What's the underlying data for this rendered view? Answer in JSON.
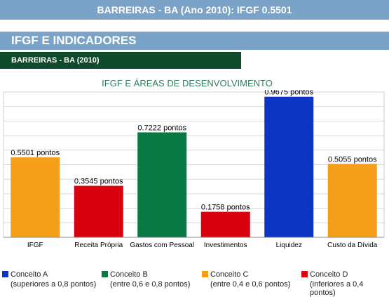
{
  "header": {
    "title": "BARREIRAS - BA (Ano 2010): IFGF 0.5501"
  },
  "section": {
    "title": "IFGF E INDICADORES",
    "subtitle": "BARREIRAS - BA (2010)"
  },
  "chart_data": {
    "type": "bar",
    "title": "IFGF E ÁREAS DE DESENVOLVIMENTO",
    "categories": [
      "IFGF",
      "Receita Própria",
      "Gastos com Pessoal",
      "Investimentos",
      "Liquidez",
      "Custo da Dívida"
    ],
    "values": [
      0.5501,
      0.3545,
      0.7222,
      0.1758,
      0.9675,
      0.5055
    ],
    "value_labels": [
      "0.5501 pontos",
      "0.3545 pontos",
      "0.7222 pontos",
      "0.1758 pontos",
      "0.9675 pontos",
      "0.5055 pontos"
    ],
    "colors": [
      "#f49e1a",
      "#d9010f",
      "#087844",
      "#d9010f",
      "#0e34c4",
      "#f49e1a"
    ],
    "ylim": [
      0,
      1
    ],
    "grid": true,
    "xlabel": "",
    "ylabel": ""
  },
  "legend": [
    {
      "color": "#0e34c4",
      "label": "Conceito A",
      "desc": "(superiores a 0,8 pontos)"
    },
    {
      "color": "#087844",
      "label": "Conceito B",
      "desc": "(entre 0,6 e 0,8 pontos)"
    },
    {
      "color": "#f49e1a",
      "label": "Conceito C",
      "desc": "(entre 0,4 e 0,6 pontos)"
    },
    {
      "color": "#d9010f",
      "label": "Conceito D",
      "desc": "(inferiores a 0,4 pontos)"
    }
  ]
}
